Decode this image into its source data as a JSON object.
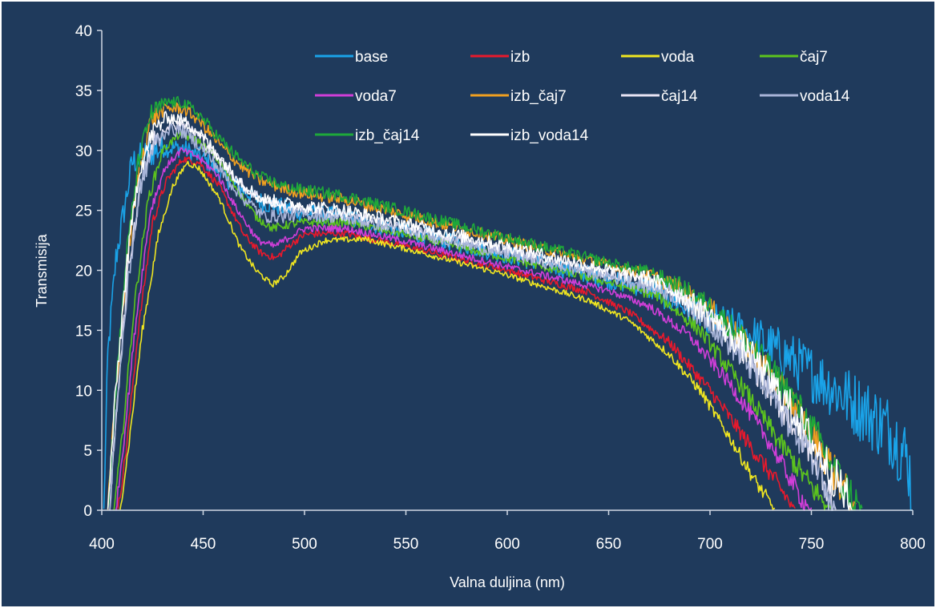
{
  "chart_data": {
    "type": "line",
    "xlabel": "Valna duljina (nm)",
    "ylabel": "Transmisija",
    "xlim": [
      400,
      800
    ],
    "ylim": [
      0,
      40
    ],
    "xticks": [
      400,
      450,
      500,
      550,
      600,
      650,
      700,
      750,
      800
    ],
    "yticks": [
      0,
      5,
      10,
      15,
      20,
      25,
      30,
      35,
      40
    ],
    "grid": false,
    "legend_position": "top-right",
    "background_color": "#1f3a5c",
    "series": [
      {
        "name": "base",
        "color": "#1aa3e8",
        "noise": 1.6,
        "points": [
          [
            401,
            0
          ],
          [
            403,
            13
          ],
          [
            407,
            21
          ],
          [
            411,
            25
          ],
          [
            415,
            29
          ],
          [
            420,
            29.5
          ],
          [
            430,
            30.2
          ],
          [
            440,
            30.2
          ],
          [
            450,
            29.3
          ],
          [
            465,
            27.2
          ],
          [
            480,
            25.6
          ],
          [
            500,
            24.8
          ],
          [
            520,
            24.4
          ],
          [
            550,
            23.2
          ],
          [
            600,
            21.3
          ],
          [
            650,
            19.2
          ],
          [
            670,
            18.5
          ],
          [
            690,
            16.8
          ],
          [
            700,
            15.9
          ],
          [
            720,
            14.6
          ],
          [
            740,
            12.6
          ],
          [
            760,
            10.3
          ],
          [
            780,
            7.8
          ],
          [
            790,
            6.5
          ],
          [
            798,
            4
          ],
          [
            800,
            0
          ]
        ]
      },
      {
        "name": "izb",
        "color": "#e8192c",
        "noise": 0.6,
        "points": [
          [
            408,
            0
          ],
          [
            412,
            5
          ],
          [
            418,
            15
          ],
          [
            425,
            24
          ],
          [
            432,
            27.5
          ],
          [
            440,
            29.3
          ],
          [
            448,
            29
          ],
          [
            458,
            27
          ],
          [
            470,
            23
          ],
          [
            478,
            21.5
          ],
          [
            486,
            21
          ],
          [
            492,
            22
          ],
          [
            500,
            23
          ],
          [
            520,
            23.1
          ],
          [
            550,
            22
          ],
          [
            600,
            20
          ],
          [
            640,
            18.2
          ],
          [
            660,
            16.5
          ],
          [
            680,
            14
          ],
          [
            700,
            10
          ],
          [
            715,
            6.5
          ],
          [
            730,
            3
          ],
          [
            742,
            0
          ]
        ]
      },
      {
        "name": "voda",
        "color": "#f0e620",
        "noise": 0.5,
        "points": [
          [
            409,
            0
          ],
          [
            413,
            5
          ],
          [
            420,
            15
          ],
          [
            428,
            23
          ],
          [
            435,
            27
          ],
          [
            442,
            29
          ],
          [
            448,
            28.5
          ],
          [
            458,
            26
          ],
          [
            468,
            22
          ],
          [
            476,
            20
          ],
          [
            484,
            18.8
          ],
          [
            490,
            19.5
          ],
          [
            498,
            21.5
          ],
          [
            510,
            22.5
          ],
          [
            530,
            22.6
          ],
          [
            550,
            21.8
          ],
          [
            600,
            19.6
          ],
          [
            640,
            17.5
          ],
          [
            660,
            15.8
          ],
          [
            680,
            13
          ],
          [
            695,
            10
          ],
          [
            710,
            6
          ],
          [
            722,
            2.5
          ],
          [
            732,
            0
          ]
        ]
      },
      {
        "name": "čaj7",
        "color": "#5cc41e",
        "noise": 0.7,
        "points": [
          [
            406,
            0
          ],
          [
            410,
            6
          ],
          [
            416,
            17
          ],
          [
            423,
            26
          ],
          [
            430,
            30
          ],
          [
            438,
            31.3
          ],
          [
            446,
            31
          ],
          [
            456,
            29.5
          ],
          [
            466,
            27
          ],
          [
            476,
            24.5
          ],
          [
            484,
            23.5
          ],
          [
            492,
            23.8
          ],
          [
            500,
            24
          ],
          [
            520,
            24
          ],
          [
            550,
            23
          ],
          [
            600,
            21
          ],
          [
            650,
            19
          ],
          [
            675,
            17.8
          ],
          [
            695,
            15
          ],
          [
            715,
            10.5
          ],
          [
            735,
            5.5
          ],
          [
            752,
            1.5
          ],
          [
            760,
            0
          ]
        ]
      },
      {
        "name": "voda7",
        "color": "#d03ed8",
        "noise": 0.6,
        "points": [
          [
            407,
            0
          ],
          [
            411,
            6
          ],
          [
            417,
            16
          ],
          [
            424,
            25
          ],
          [
            431,
            28.5
          ],
          [
            439,
            30
          ],
          [
            447,
            29.5
          ],
          [
            457,
            28
          ],
          [
            467,
            25
          ],
          [
            477,
            22.5
          ],
          [
            485,
            22
          ],
          [
            493,
            22.8
          ],
          [
            500,
            23.5
          ],
          [
            520,
            23.5
          ],
          [
            550,
            22.4
          ],
          [
            600,
            20.3
          ],
          [
            650,
            18.3
          ],
          [
            670,
            17
          ],
          [
            690,
            14.5
          ],
          [
            710,
            10.5
          ],
          [
            730,
            5.5
          ],
          [
            745,
            1
          ],
          [
            750,
            0
          ]
        ]
      },
      {
        "name": "izb_čaj7",
        "color": "#f0a020",
        "noise": 1.0,
        "points": [
          [
            403,
            0
          ],
          [
            406,
            8
          ],
          [
            412,
            20
          ],
          [
            418,
            28
          ],
          [
            424,
            32.5
          ],
          [
            432,
            33.5
          ],
          [
            440,
            33.5
          ],
          [
            448,
            32.5
          ],
          [
            458,
            30.5
          ],
          [
            468,
            28.8
          ],
          [
            478,
            27.5
          ],
          [
            490,
            26.8
          ],
          [
            500,
            26.4
          ],
          [
            520,
            25.9
          ],
          [
            550,
            24.6
          ],
          [
            600,
            22.5
          ],
          [
            650,
            20.4
          ],
          [
            670,
            19.6
          ],
          [
            685,
            18.5
          ],
          [
            700,
            16.8
          ],
          [
            720,
            13.5
          ],
          [
            740,
            9
          ],
          [
            755,
            5
          ],
          [
            765,
            2
          ],
          [
            772,
            0
          ]
        ]
      },
      {
        "name": "čaj14",
        "color": "#e8e4f4",
        "noise": 1.0,
        "points": [
          [
            404,
            0
          ],
          [
            407,
            8
          ],
          [
            413,
            20
          ],
          [
            419,
            27
          ],
          [
            426,
            31
          ],
          [
            433,
            32.2
          ],
          [
            441,
            32.2
          ],
          [
            449,
            31
          ],
          [
            459,
            29
          ],
          [
            470,
            27
          ],
          [
            480,
            25.8
          ],
          [
            490,
            25.3
          ],
          [
            500,
            25.1
          ],
          [
            520,
            24.6
          ],
          [
            550,
            23.5
          ],
          [
            600,
            21.6
          ],
          [
            650,
            19.7
          ],
          [
            680,
            18.6
          ],
          [
            700,
            16
          ],
          [
            720,
            12.3
          ],
          [
            740,
            7.5
          ],
          [
            755,
            3.5
          ],
          [
            762,
            0
          ]
        ]
      },
      {
        "name": "voda14",
        "color": "#a8b4d8",
        "noise": 1.1,
        "points": [
          [
            404,
            0
          ],
          [
            407,
            8
          ],
          [
            413,
            19
          ],
          [
            419,
            27
          ],
          [
            426,
            30.5
          ],
          [
            433,
            31.8
          ],
          [
            441,
            31.5
          ],
          [
            449,
            30.3
          ],
          [
            459,
            28.2
          ],
          [
            470,
            26
          ],
          [
            480,
            24.5
          ],
          [
            490,
            24.5
          ],
          [
            500,
            24.7
          ],
          [
            520,
            24.4
          ],
          [
            550,
            23.3
          ],
          [
            600,
            21.4
          ],
          [
            650,
            19.5
          ],
          [
            680,
            18.2
          ],
          [
            700,
            15.7
          ],
          [
            720,
            12
          ],
          [
            740,
            7.3
          ],
          [
            755,
            3.5
          ],
          [
            762,
            0
          ]
        ]
      },
      {
        "name": "izb_čaj14",
        "color": "#1ea83a",
        "noise": 1.0,
        "points": [
          [
            403,
            0
          ],
          [
            406,
            8
          ],
          [
            412,
            21
          ],
          [
            418,
            29
          ],
          [
            424,
            33
          ],
          [
            432,
            34
          ],
          [
            440,
            34
          ],
          [
            448,
            33
          ],
          [
            458,
            31
          ],
          [
            468,
            29.2
          ],
          [
            478,
            27.8
          ],
          [
            490,
            27
          ],
          [
            500,
            26.7
          ],
          [
            520,
            26.2
          ],
          [
            550,
            24.9
          ],
          [
            600,
            22.7
          ],
          [
            650,
            20.6
          ],
          [
            670,
            19.8
          ],
          [
            685,
            18.7
          ],
          [
            700,
            17
          ],
          [
            720,
            13.8
          ],
          [
            740,
            9.5
          ],
          [
            755,
            5.5
          ],
          [
            765,
            2.2
          ],
          [
            775,
            0
          ]
        ]
      },
      {
        "name": "izb_voda14",
        "color": "#ffffff",
        "noise": 1.1,
        "points": [
          [
            403,
            0
          ],
          [
            406,
            8
          ],
          [
            412,
            20
          ],
          [
            418,
            28
          ],
          [
            425,
            31.5
          ],
          [
            432,
            32.8
          ],
          [
            440,
            32.5
          ],
          [
            448,
            31.5
          ],
          [
            458,
            29.5
          ],
          [
            468,
            27.5
          ],
          [
            478,
            26
          ],
          [
            490,
            25.6
          ],
          [
            500,
            25.4
          ],
          [
            520,
            25
          ],
          [
            550,
            23.9
          ],
          [
            600,
            22
          ],
          [
            650,
            20
          ],
          [
            670,
            19.3
          ],
          [
            685,
            18
          ],
          [
            700,
            16.2
          ],
          [
            720,
            13
          ],
          [
            740,
            8.5
          ],
          [
            755,
            4.5
          ],
          [
            765,
            1.8
          ],
          [
            770,
            0
          ]
        ]
      }
    ]
  }
}
